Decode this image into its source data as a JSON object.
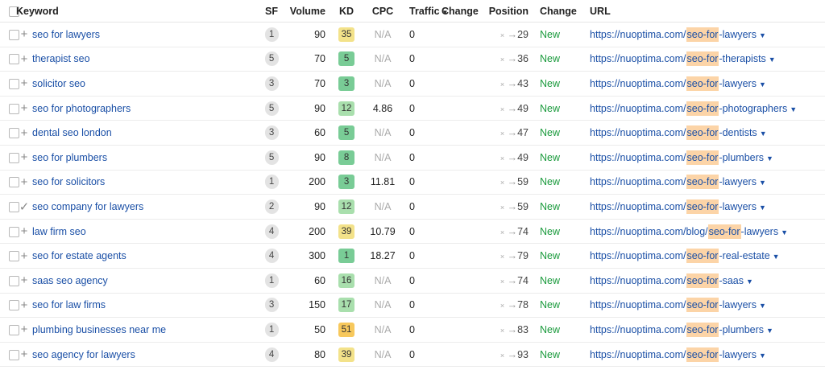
{
  "columns": {
    "keyword": "Keyword",
    "sf": "SF",
    "volume": "Volume",
    "kd": "KD",
    "cpc": "CPC",
    "traffic": "Traffic",
    "traffic_change": "Change",
    "position": "Position",
    "position_change": "Change",
    "url": "URL"
  },
  "colors": {
    "kd_green": "#79cc96",
    "kd_lightgreen": "#a9dfad",
    "kd_yellow": "#f3e28a",
    "kd_orange": "#f7c85c",
    "url_highlight": "#fcd4a7",
    "new_green": "#1a9a3c",
    "link_blue": "#1a4fa6"
  },
  "rows": [
    {
      "action_icon": "plus-icon",
      "keyword": "seo for lawyers",
      "sf": "1",
      "volume": "90",
      "kd": "35",
      "kd_color": "#f3e28a",
      "cpc": "N/A",
      "traffic": "0",
      "pos_prev": "×",
      "pos_arrow": "→",
      "position": "29",
      "status": "New",
      "url_prefix": "https://nuoptima.com/",
      "url_highlight": "seo-for",
      "url_suffix": "-lawyers"
    },
    {
      "action_icon": "plus-icon",
      "keyword": "therapist seo",
      "sf": "5",
      "volume": "70",
      "kd": "5",
      "kd_color": "#79cc96",
      "cpc": "N/A",
      "traffic": "0",
      "pos_prev": "×",
      "pos_arrow": "→",
      "position": "36",
      "status": "New",
      "url_prefix": "https://nuoptima.com/",
      "url_highlight": "seo-for",
      "url_suffix": "-therapists"
    },
    {
      "action_icon": "plus-icon",
      "keyword": "solicitor seo",
      "sf": "3",
      "volume": "70",
      "kd": "3",
      "kd_color": "#79cc96",
      "cpc": "N/A",
      "traffic": "0",
      "pos_prev": "×",
      "pos_arrow": "→",
      "position": "43",
      "status": "New",
      "url_prefix": "https://nuoptima.com/",
      "url_highlight": "seo-for",
      "url_suffix": "-lawyers"
    },
    {
      "action_icon": "plus-icon",
      "keyword": "seo for photographers",
      "sf": "5",
      "volume": "90",
      "kd": "12",
      "kd_color": "#a9dfad",
      "cpc": "4.86",
      "traffic": "0",
      "pos_prev": "×",
      "pos_arrow": "→",
      "position": "49",
      "status": "New",
      "url_prefix": "https://nuoptima.com/",
      "url_highlight": "seo-for",
      "url_suffix": "-photographers"
    },
    {
      "action_icon": "plus-icon",
      "keyword": "dental seo london",
      "sf": "3",
      "volume": "60",
      "kd": "5",
      "kd_color": "#79cc96",
      "cpc": "N/A",
      "traffic": "0",
      "pos_prev": "×",
      "pos_arrow": "→",
      "position": "47",
      "status": "New",
      "url_prefix": "https://nuoptima.com/",
      "url_highlight": "seo-for",
      "url_suffix": "-dentists"
    },
    {
      "action_icon": "plus-icon",
      "keyword": "seo for plumbers",
      "sf": "5",
      "volume": "90",
      "kd": "8",
      "kd_color": "#79cc96",
      "cpc": "N/A",
      "traffic": "0",
      "pos_prev": "×",
      "pos_arrow": "→",
      "position": "49",
      "status": "New",
      "url_prefix": "https://nuoptima.com/",
      "url_highlight": "seo-for",
      "url_suffix": "-plumbers"
    },
    {
      "action_icon": "plus-icon",
      "keyword": "seo for solicitors",
      "sf": "1",
      "volume": "200",
      "kd": "3",
      "kd_color": "#79cc96",
      "cpc": "11.81",
      "traffic": "0",
      "pos_prev": "×",
      "pos_arrow": "→",
      "position": "59",
      "status": "New",
      "url_prefix": "https://nuoptima.com/",
      "url_highlight": "seo-for",
      "url_suffix": "-lawyers"
    },
    {
      "action_icon": "check-icon",
      "keyword": "seo company for lawyers",
      "sf": "2",
      "volume": "90",
      "kd": "12",
      "kd_color": "#a9dfad",
      "cpc": "N/A",
      "traffic": "0",
      "pos_prev": "×",
      "pos_arrow": "→",
      "position": "59",
      "status": "New",
      "url_prefix": "https://nuoptima.com/",
      "url_highlight": "seo-for",
      "url_suffix": "-lawyers"
    },
    {
      "action_icon": "plus-icon",
      "keyword": "law firm seo",
      "sf": "4",
      "volume": "200",
      "kd": "39",
      "kd_color": "#f3e28a",
      "cpc": "10.79",
      "traffic": "0",
      "pos_prev": "×",
      "pos_arrow": "→",
      "position": "74",
      "status": "New",
      "url_prefix": "https://nuoptima.com/blog/",
      "url_highlight": "seo-for",
      "url_suffix": "-lawyers"
    },
    {
      "action_icon": "plus-icon",
      "keyword": "seo for estate agents",
      "sf": "4",
      "volume": "300",
      "kd": "1",
      "kd_color": "#79cc96",
      "cpc": "18.27",
      "traffic": "0",
      "pos_prev": "×",
      "pos_arrow": "→",
      "position": "79",
      "status": "New",
      "url_prefix": "https://nuoptima.com/",
      "url_highlight": "seo-for",
      "url_suffix": "-real-estate"
    },
    {
      "action_icon": "plus-icon",
      "keyword": "saas seo agency",
      "sf": "1",
      "volume": "60",
      "kd": "16",
      "kd_color": "#a9dfad",
      "cpc": "N/A",
      "traffic": "0",
      "pos_prev": "×",
      "pos_arrow": "→",
      "position": "74",
      "status": "New",
      "url_prefix": "https://nuoptima.com/",
      "url_highlight": "seo-for",
      "url_suffix": "-saas"
    },
    {
      "action_icon": "plus-icon",
      "keyword": "seo for law firms",
      "sf": "3",
      "volume": "150",
      "kd": "17",
      "kd_color": "#a9dfad",
      "cpc": "N/A",
      "traffic": "0",
      "pos_prev": "×",
      "pos_arrow": "→",
      "position": "78",
      "status": "New",
      "url_prefix": "https://nuoptima.com/",
      "url_highlight": "seo-for",
      "url_suffix": "-lawyers"
    },
    {
      "action_icon": "plus-icon",
      "keyword": "plumbing businesses near me",
      "sf": "1",
      "volume": "50",
      "kd": "51",
      "kd_color": "#f7c85c",
      "cpc": "N/A",
      "traffic": "0",
      "pos_prev": "×",
      "pos_arrow": "→",
      "position": "83",
      "status": "New",
      "url_prefix": "https://nuoptima.com/",
      "url_highlight": "seo-for",
      "url_suffix": "-plumbers"
    },
    {
      "action_icon": "plus-icon",
      "keyword": "seo agency for lawyers",
      "sf": "4",
      "volume": "80",
      "kd": "39",
      "kd_color": "#f3e28a",
      "cpc": "N/A",
      "traffic": "0",
      "pos_prev": "×",
      "pos_arrow": "→",
      "position": "93",
      "status": "New",
      "url_prefix": "https://nuoptima.com/",
      "url_highlight": "seo-for",
      "url_suffix": "-lawyers"
    }
  ]
}
